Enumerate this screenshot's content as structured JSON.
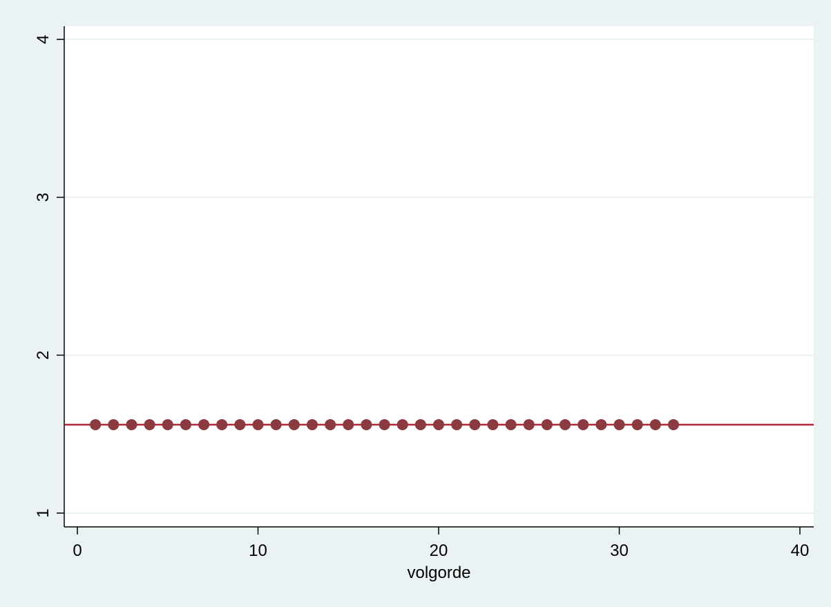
{
  "chart_data": {
    "type": "scatter",
    "title": "",
    "xlabel": "volgorde",
    "ylabel": "",
    "xlim": [
      -0.5,
      40.8
    ],
    "ylim": [
      0.95,
      4.08
    ],
    "x_ticks": [
      0,
      10,
      20,
      30,
      40
    ],
    "y_ticks": [
      1,
      2,
      3,
      4
    ],
    "grid": "horizontal",
    "legend": "none",
    "series": [
      {
        "x": [
          1,
          2,
          3,
          4,
          5,
          6,
          7,
          8,
          9,
          10,
          11,
          12,
          13,
          14,
          15,
          16,
          17,
          18,
          19,
          20,
          21,
          22,
          23,
          24,
          25,
          26,
          27,
          28,
          29,
          30,
          31,
          32,
          33
        ],
        "y": [
          1.56,
          1.56,
          1.56,
          1.56,
          1.56,
          1.56,
          1.56,
          1.56,
          1.56,
          1.56,
          1.56,
          1.56,
          1.56,
          1.56,
          1.56,
          1.56,
          1.56,
          1.56,
          1.56,
          1.56,
          1.56,
          1.56,
          1.56,
          1.56,
          1.56,
          1.56,
          1.56,
          1.56,
          1.56,
          1.56,
          1.56,
          1.56,
          1.56
        ]
      }
    ],
    "reference_line": {
      "y": 1.56
    },
    "colors": {
      "background": "#eaf2f3",
      "plot_area": "#ffffff",
      "gridline": "#eaf2f3",
      "marker": "#8b3a3f",
      "reference_line": "#b22238"
    }
  }
}
